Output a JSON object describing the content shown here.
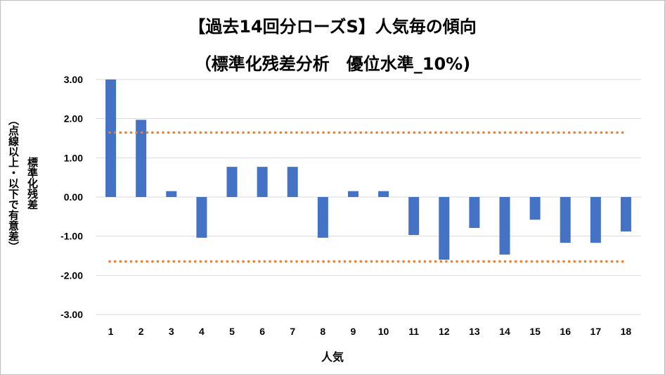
{
  "chart_data": {
    "type": "bar",
    "title_line1": "【過去14回分ローズS】人気毎の傾向",
    "title_line2": "（標準化残差分析　優位水準_10%)",
    "ylabel_line1": "標準化残差",
    "ylabel_line2": "（点線以上・以下で有意差）",
    "xlabel": "人気",
    "categories": [
      "1",
      "2",
      "3",
      "4",
      "5",
      "6",
      "7",
      "8",
      "9",
      "10",
      "11",
      "12",
      "13",
      "14",
      "15",
      "16",
      "17",
      "18"
    ],
    "values": [
      3.0,
      1.97,
      0.15,
      -1.04,
      0.77,
      0.77,
      0.77,
      -1.04,
      0.15,
      0.15,
      -0.97,
      -1.6,
      -0.79,
      -1.47,
      -0.58,
      -1.17,
      -1.17,
      -0.88
    ],
    "ylim": [
      -3.0,
      3.0
    ],
    "yticks": [
      "3.00",
      "2.00",
      "1.00",
      "0.00",
      "-1.00",
      "-2.00",
      "-3.00"
    ],
    "threshold_upper": 1.645,
    "threshold_lower": -1.645,
    "bar_color": "#4472c4",
    "threshold_color": "#ed7d31",
    "grid": true,
    "legend": "none"
  }
}
